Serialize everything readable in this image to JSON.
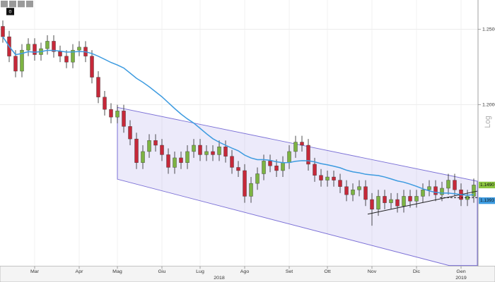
{
  "chart_data": {
    "type": "candlestick",
    "log_scale": true,
    "grid": true,
    "up_color": "#7cb342",
    "down_color": "#c62839",
    "ma_color": "#3d9be0",
    "ylim": [
      1.1,
      1.27
    ],
    "yticks": [
      {
        "value": 1.2,
        "label": "1.2000"
      },
      {
        "value": 1.25,
        "label": "1.2500"
      }
    ],
    "scale_label": "Log",
    "toolbar_badge": "0",
    "last_labels": [
      {
        "value": 1.149,
        "label": "1.1490",
        "color": "#8cc63f"
      },
      {
        "value": 1.1393,
        "label": "1.1393",
        "color": "#3d9be0"
      }
    ],
    "categories": [
      null,
      null,
      null,
      null,
      null,
      "Mar",
      null,
      null,
      null,
      null,
      null,
      null,
      "Apr",
      null,
      null,
      null,
      null,
      null,
      "Mag",
      null,
      null,
      null,
      null,
      null,
      null,
      "Giu",
      null,
      null,
      null,
      null,
      null,
      "Lug",
      null,
      null,
      null,
      null,
      null,
      null,
      "Ago",
      null,
      null,
      null,
      null,
      null,
      null,
      "Set",
      null,
      null,
      null,
      null,
      null,
      "Ott",
      null,
      null,
      null,
      null,
      null,
      null,
      "Nov",
      null,
      null,
      null,
      null,
      null,
      null,
      "Dic",
      null,
      null,
      null,
      null,
      null,
      null,
      "Gen",
      null,
      null
    ],
    "years": [
      null,
      null,
      null,
      null,
      null,
      null,
      null,
      null,
      null,
      null,
      null,
      null,
      null,
      null,
      null,
      null,
      null,
      null,
      null,
      null,
      null,
      null,
      null,
      null,
      null,
      null,
      null,
      null,
      null,
      null,
      null,
      null,
      null,
      null,
      "2018",
      null,
      null,
      null,
      null,
      null,
      null,
      null,
      null,
      null,
      null,
      null,
      null,
      null,
      null,
      null,
      null,
      null,
      null,
      null,
      null,
      null,
      null,
      null,
      null,
      null,
      null,
      null,
      null,
      null,
      null,
      null,
      null,
      null,
      null,
      null,
      null,
      null,
      "2019",
      null,
      null
    ],
    "open": [
      1.252,
      1.245,
      1.232,
      1.222,
      1.236,
      1.24,
      1.233,
      1.237,
      1.242,
      1.235,
      1.232,
      1.228,
      1.236,
      1.238,
      1.232,
      1.218,
      1.205,
      1.197,
      1.192,
      1.196,
      1.186,
      1.178,
      1.163,
      1.17,
      1.177,
      1.174,
      1.168,
      1.16,
      1.166,
      1.163,
      1.17,
      1.174,
      1.168,
      1.17,
      1.168,
      1.173,
      1.167,
      1.16,
      1.158,
      1.142,
      1.15,
      1.156,
      1.164,
      1.161,
      1.158,
      1.163,
      1.17,
      1.176,
      1.174,
      1.162,
      1.155,
      1.152,
      1.154,
      1.152,
      1.148,
      1.143,
      1.146,
      1.148,
      1.14,
      1.134,
      1.142,
      1.138,
      1.14,
      1.136,
      1.142,
      1.139,
      1.142,
      1.146,
      1.148,
      1.143,
      1.147,
      1.152,
      1.146,
      1.14,
      1.142
    ],
    "high": [
      1.256,
      1.249,
      1.236,
      1.24,
      1.244,
      1.244,
      1.241,
      1.246,
      1.246,
      1.239,
      1.236,
      1.24,
      1.242,
      1.242,
      1.236,
      1.222,
      1.209,
      1.201,
      1.2,
      1.2,
      1.19,
      1.182,
      1.174,
      1.181,
      1.181,
      1.178,
      1.172,
      1.17,
      1.17,
      1.174,
      1.178,
      1.178,
      1.174,
      1.174,
      1.177,
      1.177,
      1.171,
      1.164,
      1.162,
      1.154,
      1.16,
      1.168,
      1.168,
      1.165,
      1.167,
      1.174,
      1.18,
      1.18,
      1.178,
      1.166,
      1.159,
      1.158,
      1.158,
      1.156,
      1.152,
      1.15,
      1.152,
      1.152,
      1.144,
      1.146,
      1.146,
      1.144,
      1.144,
      1.146,
      1.146,
      1.146,
      1.15,
      1.152,
      1.152,
      1.151,
      1.156,
      1.156,
      1.15,
      1.146,
      1.153
    ],
    "low": [
      1.241,
      1.228,
      1.218,
      1.218,
      1.232,
      1.229,
      1.229,
      1.233,
      1.231,
      1.228,
      1.224,
      1.224,
      1.232,
      1.228,
      1.214,
      1.201,
      1.193,
      1.188,
      1.188,
      1.182,
      1.174,
      1.159,
      1.159,
      1.166,
      1.17,
      1.164,
      1.156,
      1.156,
      1.159,
      1.159,
      1.166,
      1.164,
      1.164,
      1.164,
      1.164,
      1.163,
      1.156,
      1.154,
      1.138,
      1.138,
      1.146,
      1.152,
      1.157,
      1.154,
      1.154,
      1.159,
      1.166,
      1.17,
      1.158,
      1.151,
      1.148,
      1.148,
      1.148,
      1.144,
      1.139,
      1.139,
      1.142,
      1.136,
      1.124,
      1.13,
      1.134,
      1.134,
      1.132,
      1.132,
      1.135,
      1.135,
      1.138,
      1.142,
      1.139,
      1.139,
      1.143,
      1.142,
      1.136,
      1.136,
      1.138
    ],
    "close": [
      1.245,
      1.232,
      1.222,
      1.236,
      1.24,
      1.233,
      1.237,
      1.242,
      1.235,
      1.232,
      1.228,
      1.236,
      1.238,
      1.232,
      1.218,
      1.205,
      1.197,
      1.192,
      1.196,
      1.186,
      1.178,
      1.163,
      1.17,
      1.177,
      1.174,
      1.168,
      1.16,
      1.166,
      1.163,
      1.17,
      1.174,
      1.168,
      1.17,
      1.168,
      1.173,
      1.167,
      1.16,
      1.158,
      1.142,
      1.15,
      1.156,
      1.164,
      1.161,
      1.158,
      1.163,
      1.17,
      1.176,
      1.174,
      1.162,
      1.155,
      1.152,
      1.154,
      1.152,
      1.148,
      1.143,
      1.146,
      1.148,
      1.14,
      1.134,
      1.142,
      1.138,
      1.14,
      1.136,
      1.142,
      1.139,
      1.142,
      1.146,
      1.148,
      1.143,
      1.147,
      1.152,
      1.146,
      1.14,
      1.142,
      1.149
    ]
  }
}
